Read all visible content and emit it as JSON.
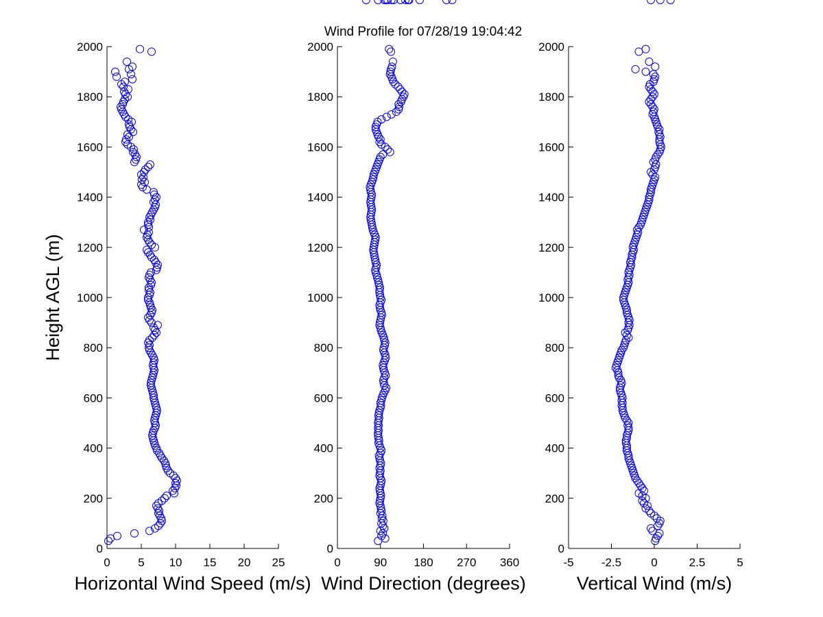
{
  "title": "Wind Profile for  07/28/19 19:04:42",
  "marker_color": "#0000ff",
  "chart_data": [
    {
      "type": "scatter",
      "name": "speed",
      "xlabel": "Horizontal Wind Speed (m/s)",
      "ylabel": "Height AGL (m)",
      "xlim": [
        0,
        25
      ],
      "ylim": [
        0,
        2000
      ],
      "xticks": [
        0,
        5,
        10,
        15,
        20,
        25
      ],
      "xtick_labels": [
        "0",
        "5",
        "10",
        "15",
        "20",
        "25"
      ],
      "yticks": [
        0,
        200,
        400,
        600,
        800,
        1000,
        1200,
        1400,
        1600,
        1800,
        2000
      ],
      "ytick_labels": [
        "0",
        "200",
        "400",
        "600",
        "800",
        "1000",
        "1200",
        "1400",
        "1600",
        "1800",
        "2000"
      ],
      "height_m": [
        30,
        40,
        50,
        60,
        70,
        80,
        90,
        100,
        110,
        120,
        130,
        140,
        150,
        160,
        170,
        180,
        190,
        200,
        210,
        220,
        230,
        240,
        250,
        260,
        270,
        280,
        290,
        300,
        310,
        320,
        330,
        340,
        350,
        360,
        370,
        380,
        390,
        400,
        410,
        420,
        430,
        440,
        450,
        460,
        470,
        480,
        490,
        500,
        510,
        520,
        530,
        540,
        550,
        560,
        570,
        580,
        590,
        600,
        610,
        620,
        630,
        640,
        650,
        660,
        670,
        680,
        690,
        700,
        710,
        720,
        730,
        740,
        750,
        760,
        770,
        780,
        790,
        800,
        810,
        820,
        830,
        840,
        850,
        860,
        870,
        880,
        890,
        900,
        910,
        920,
        930,
        940,
        950,
        960,
        970,
        980,
        990,
        1000,
        1010,
        1020,
        1030,
        1040,
        1050,
        1060,
        1070,
        1080,
        1090,
        1100,
        1110,
        1120,
        1130,
        1140,
        1150,
        1160,
        1170,
        1180,
        1190,
        1200,
        1210,
        1220,
        1230,
        1240,
        1250,
        1260,
        1270,
        1280,
        1290,
        1300,
        1310,
        1320,
        1330,
        1340,
        1350,
        1360,
        1370,
        1380,
        1390,
        1400,
        1410,
        1420,
        1430,
        1440,
        1450,
        1460,
        1470,
        1480,
        1490,
        1500,
        1510,
        1520,
        1530,
        1540,
        1550,
        1560,
        1570,
        1580,
        1590,
        1600,
        1610,
        1620,
        1630,
        1640,
        1650,
        1660,
        1670,
        1680,
        1690,
        1700,
        1710,
        1720,
        1730,
        1740,
        1750,
        1760,
        1770,
        1780,
        1790,
        1800,
        1810,
        1820,
        1830,
        1840,
        1850,
        1860,
        1870,
        1880,
        1890,
        1900,
        1910,
        1920,
        1940,
        1980,
        1990
      ],
      "values": [
        0.2,
        0.5,
        1.5,
        4.0,
        6.2,
        7.0,
        7.5,
        7.8,
        8.0,
        7.9,
        7.7,
        7.5,
        7.6,
        7.4,
        7.2,
        7.5,
        8.0,
        8.4,
        8.7,
        9.8,
        9.6,
        9.9,
        10.1,
        10.0,
        10.2,
        10.0,
        9.7,
        9.2,
        8.9,
        8.7,
        8.6,
        8.5,
        8.3,
        8.0,
        7.8,
        7.6,
        7.3,
        7.2,
        7.0,
        6.9,
        6.8,
        6.7,
        6.6,
        6.7,
        6.8,
        7.0,
        7.1,
        7.0,
        6.9,
        7.0,
        7.1,
        7.2,
        7.3,
        7.2,
        7.1,
        7.0,
        6.9,
        6.8,
        6.8,
        6.7,
        6.6,
        6.5,
        6.4,
        6.4,
        6.5,
        6.6,
        6.7,
        6.8,
        6.9,
        6.8,
        6.7,
        6.8,
        6.9,
        6.8,
        6.6,
        6.4,
        6.2,
        6.1,
        6.2,
        6.0,
        6.2,
        6.6,
        6.9,
        7.2,
        7.0,
        6.8,
        7.4,
        6.5,
        6.2,
        6.0,
        6.3,
        6.5,
        6.6,
        6.4,
        6.3,
        6.2,
        6.0,
        6.0,
        6.2,
        6.3,
        6.1,
        6.1,
        6.4,
        6.5,
        6.3,
        6.1,
        6.2,
        6.4,
        7.2,
        7.3,
        7.4,
        7.1,
        6.9,
        6.5,
        6.3,
        6.0,
        5.8,
        7.0,
        6.5,
        6.2,
        6.0,
        5.8,
        5.9,
        6.1,
        5.4,
        6.1,
        6.0,
        6.0,
        6.3,
        6.2,
        6.4,
        6.6,
        6.8,
        7.0,
        7.1,
        6.8,
        7.0,
        7.2,
        6.9,
        6.8,
        5.8,
        5.2,
        5.0,
        5.5,
        5.1,
        5.3,
        5.0,
        5.4,
        5.6,
        6.0,
        6.3,
        4.0,
        4.2,
        4.3,
        4.1,
        3.8,
        3.9,
        3.5,
        3.0,
        2.7,
        2.8,
        3.2,
        3.0,
        3.8,
        3.5,
        3.3,
        3.2,
        3.6,
        3.1,
        2.7,
        2.5,
        2.3,
        2.1,
        2.0,
        2.3,
        2.4,
        2.6,
        3.0,
        2.7,
        2.5,
        3.1,
        2.4,
        2.1,
        2.6,
        3.7,
        1.4,
        3.5,
        1.2,
        3.2,
        3.7,
        2.9,
        6.5,
        4.8
      ]
    },
    {
      "type": "scatter",
      "name": "direction",
      "xlabel": "Wind Direction (degrees)",
      "ylabel": "",
      "xlim": [
        0,
        360
      ],
      "ylim": [
        0,
        2000
      ],
      "xticks": [
        0,
        90,
        180,
        270,
        360
      ],
      "xtick_labels": [
        "0",
        "90",
        "180",
        "270",
        "360"
      ],
      "yticks": [
        0,
        200,
        400,
        600,
        800,
        1000,
        1200,
        1400,
        1600,
        1800,
        2000
      ],
      "ytick_labels": [
        "0",
        "200",
        "400",
        "600",
        "800",
        "1000",
        "1200",
        "1400",
        "1600",
        "1800",
        "2000"
      ],
      "height_m": [
        30,
        40,
        50,
        60,
        70,
        80,
        90,
        100,
        110,
        120,
        130,
        140,
        150,
        160,
        170,
        180,
        190,
        200,
        210,
        220,
        230,
        240,
        250,
        260,
        270,
        280,
        290,
        300,
        310,
        320,
        330,
        340,
        350,
        360,
        370,
        380,
        390,
        400,
        410,
        420,
        430,
        440,
        450,
        460,
        470,
        480,
        490,
        500,
        510,
        520,
        530,
        540,
        550,
        560,
        570,
        580,
        590,
        600,
        610,
        620,
        630,
        640,
        650,
        660,
        670,
        680,
        690,
        700,
        710,
        720,
        730,
        740,
        750,
        760,
        770,
        780,
        790,
        800,
        810,
        820,
        830,
        840,
        850,
        860,
        870,
        880,
        890,
        900,
        910,
        920,
        930,
        940,
        950,
        960,
        970,
        980,
        990,
        1000,
        1010,
        1020,
        1030,
        1040,
        1050,
        1060,
        1070,
        1080,
        1090,
        1100,
        1110,
        1120,
        1130,
        1140,
        1150,
        1160,
        1170,
        1180,
        1190,
        1200,
        1210,
        1220,
        1230,
        1240,
        1250,
        1260,
        1270,
        1280,
        1290,
        1300,
        1310,
        1320,
        1330,
        1340,
        1350,
        1360,
        1370,
        1380,
        1390,
        1400,
        1410,
        1420,
        1430,
        1440,
        1450,
        1460,
        1470,
        1480,
        1490,
        1500,
        1510,
        1520,
        1530,
        1540,
        1550,
        1560,
        1570,
        1580,
        1590,
        1600,
        1610,
        1620,
        1630,
        1640,
        1650,
        1660,
        1670,
        1680,
        1690,
        1700,
        1710,
        1720,
        1730,
        1740,
        1750,
        1760,
        1770,
        1780,
        1790,
        1800,
        1810,
        1820,
        1830,
        1840,
        1850,
        1860,
        1870,
        1880,
        1890,
        1900,
        1910,
        1920,
        1940,
        1980,
        1990
      ],
      "values": [
        85,
        100,
        92,
        95,
        90,
        98,
        95,
        92,
        96,
        93,
        94,
        90,
        92,
        91,
        90,
        88,
        89,
        90,
        91,
        90,
        89,
        88,
        90,
        91,
        92,
        90,
        88,
        89,
        90,
        88,
        90,
        91,
        89,
        88,
        87,
        90,
        92,
        90,
        88,
        86,
        87,
        86,
        85,
        85,
        86,
        85,
        86,
        85,
        86,
        87,
        86,
        87,
        88,
        90,
        91,
        90,
        92,
        93,
        95,
        97,
        100,
        102,
        98,
        97,
        96,
        98,
        101,
        99,
        97,
        96,
        95,
        97,
        99,
        101,
        100,
        98,
        96,
        97,
        99,
        100,
        98,
        97,
        95,
        93,
        91,
        90,
        88,
        89,
        90,
        91,
        93,
        92,
        90,
        89,
        88,
        90,
        92,
        90,
        89,
        88,
        88,
        89,
        87,
        86,
        85,
        83,
        82,
        80,
        79,
        81,
        82,
        80,
        79,
        78,
        77,
        76,
        75,
        76,
        77,
        78,
        79,
        80,
        78,
        76,
        74,
        73,
        72,
        71,
        70,
        69,
        70,
        71,
        72,
        71,
        70,
        69,
        70,
        71,
        72,
        70,
        69,
        68,
        70,
        72,
        74,
        75,
        76,
        78,
        80,
        82,
        84,
        86,
        88,
        90,
        95,
        110,
        105,
        100,
        92,
        88,
        90,
        86,
        84,
        82,
        80,
        80,
        82,
        84,
        92,
        103,
        113,
        123,
        128,
        129,
        128,
        133,
        135,
        138,
        140,
        135,
        131,
        127,
        121,
        117,
        115,
        113,
        110,
        111,
        112,
        114,
        116,
        112,
        108,
        113,
        102,
        142,
        148,
        98,
        60,
        85,
        150,
        240,
        228,
        105,
        148,
        118,
        132,
        172
      ]
    },
    {
      "type": "scatter",
      "name": "vertical",
      "xlabel": "Vertical Wind (m/s)",
      "ylabel": "",
      "xlim": [
        -5,
        5
      ],
      "ylim": [
        0,
        2000
      ],
      "xticks": [
        -5,
        -2.5,
        0,
        2.5,
        5
      ],
      "xtick_labels": [
        "-5",
        "-2.5",
        "0",
        "2.5",
        "5"
      ],
      "yticks": [
        0,
        200,
        400,
        600,
        800,
        1000,
        1200,
        1400,
        1600,
        1800,
        2000
      ],
      "ytick_labels": [
        "0",
        "200",
        "400",
        "600",
        "800",
        "1000",
        "1200",
        "1400",
        "1600",
        "1800",
        "2000"
      ],
      "height_m": [
        30,
        40,
        50,
        60,
        70,
        80,
        90,
        100,
        110,
        120,
        130,
        140,
        150,
        160,
        170,
        180,
        190,
        200,
        210,
        220,
        230,
        240,
        250,
        260,
        270,
        280,
        290,
        300,
        310,
        320,
        330,
        340,
        350,
        360,
        370,
        380,
        390,
        400,
        410,
        420,
        430,
        440,
        450,
        460,
        470,
        480,
        490,
        500,
        510,
        520,
        530,
        540,
        550,
        560,
        570,
        580,
        590,
        600,
        610,
        620,
        630,
        640,
        650,
        660,
        670,
        680,
        690,
        700,
        710,
        720,
        730,
        740,
        750,
        760,
        770,
        780,
        790,
        800,
        810,
        820,
        830,
        840,
        850,
        860,
        870,
        880,
        890,
        900,
        910,
        920,
        930,
        940,
        950,
        960,
        970,
        980,
        990,
        1000,
        1010,
        1020,
        1030,
        1040,
        1050,
        1060,
        1070,
        1080,
        1090,
        1100,
        1110,
        1120,
        1130,
        1140,
        1150,
        1160,
        1170,
        1180,
        1190,
        1200,
        1210,
        1220,
        1230,
        1240,
        1250,
        1260,
        1270,
        1280,
        1290,
        1300,
        1310,
        1320,
        1330,
        1340,
        1350,
        1360,
        1370,
        1380,
        1390,
        1400,
        1410,
        1420,
        1430,
        1440,
        1450,
        1460,
        1470,
        1480,
        1490,
        1500,
        1510,
        1520,
        1530,
        1540,
        1550,
        1560,
        1570,
        1580,
        1590,
        1600,
        1610,
        1620,
        1630,
        1640,
        1650,
        1660,
        1670,
        1680,
        1690,
        1700,
        1710,
        1720,
        1730,
        1740,
        1750,
        1760,
        1770,
        1780,
        1790,
        1800,
        1810,
        1820,
        1830,
        1840,
        1850,
        1860,
        1870,
        1880,
        1890,
        1900,
        1910,
        1920,
        1940,
        1980,
        1990
      ],
      "values": [
        0.05,
        0.1,
        0.2,
        0.3,
        -0.1,
        -0.2,
        0.2,
        0.3,
        0.35,
        0.15,
        0.0,
        -0.2,
        -0.3,
        -0.5,
        -0.4,
        -0.6,
        -0.7,
        -0.5,
        -0.7,
        -0.9,
        -0.6,
        -0.7,
        -0.8,
        -0.9,
        -1.0,
        -1.1,
        -1.15,
        -1.2,
        -1.25,
        -1.3,
        -1.35,
        -1.4,
        -1.45,
        -1.5,
        -1.5,
        -1.55,
        -1.6,
        -1.6,
        -1.6,
        -1.65,
        -1.65,
        -1.6,
        -1.6,
        -1.55,
        -1.5,
        -1.5,
        -1.55,
        -1.5,
        -1.6,
        -1.7,
        -1.75,
        -1.8,
        -1.85,
        -1.85,
        -1.9,
        -1.85,
        -1.9,
        -1.85,
        -1.9,
        -1.95,
        -2.0,
        -2.0,
        -1.95,
        -1.9,
        -1.95,
        -2.05,
        -2.1,
        -2.1,
        -2.15,
        -2.25,
        -2.2,
        -2.15,
        -2.1,
        -2.05,
        -2.0,
        -1.95,
        -1.9,
        -1.8,
        -1.75,
        -1.7,
        -1.65,
        -1.5,
        -1.6,
        -1.7,
        -1.55,
        -1.5,
        -1.45,
        -1.5,
        -1.45,
        -1.5,
        -1.55,
        -1.6,
        -1.6,
        -1.65,
        -1.7,
        -1.75,
        -1.8,
        -1.8,
        -1.75,
        -1.7,
        -1.65,
        -1.6,
        -1.55,
        -1.5,
        -1.55,
        -1.5,
        -1.45,
        -1.5,
        -1.45,
        -1.4,
        -1.35,
        -1.4,
        -1.35,
        -1.3,
        -1.3,
        -1.25,
        -1.2,
        -1.25,
        -1.2,
        -1.15,
        -1.1,
        -1.05,
        -1.0,
        -0.95,
        -1.0,
        -0.9,
        -0.8,
        -0.75,
        -0.7,
        -0.65,
        -0.6,
        -0.55,
        -0.5,
        -0.45,
        -0.4,
        -0.35,
        -0.3,
        -0.3,
        -0.25,
        -0.2,
        -0.2,
        -0.15,
        -0.1,
        -0.05,
        0.0,
        0.05,
        -0.1,
        -0.2,
        0.0,
        0.05,
        0.1,
        -0.05,
        0.05,
        0.1,
        0.2,
        0.3,
        0.35,
        0.4,
        0.35,
        0.3,
        0.3,
        0.35,
        0.3,
        0.25,
        0.3,
        0.2,
        0.15,
        0.1,
        0.05,
        0.0,
        -0.1,
        -0.05,
        0.0,
        -0.1,
        -0.2,
        -0.3,
        -0.2,
        -0.1,
        0.0,
        -0.1,
        -0.2,
        -0.3,
        -0.25,
        -0.05,
        0.0,
        0.05,
        -0.05,
        -0.5,
        -1.1,
        0.05,
        -0.3,
        -0.9,
        -0.5,
        -0.2,
        0.35,
        0.95
      ]
    }
  ]
}
